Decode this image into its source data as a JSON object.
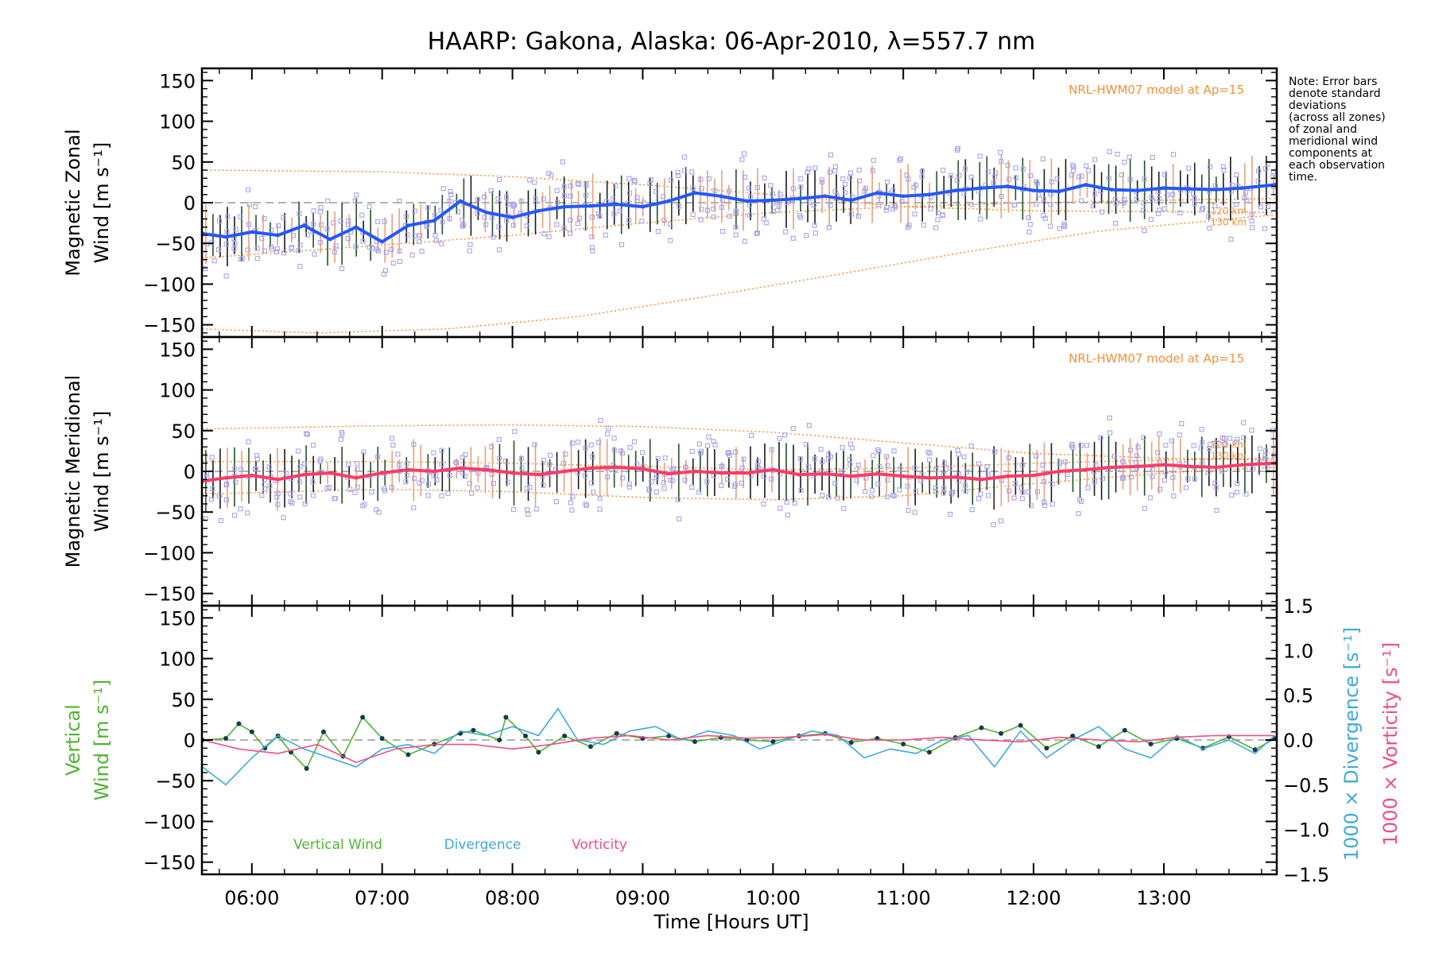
{
  "chart_data": {
    "type": "line",
    "title": "HAARP: Gakona,  Alaska: 06-Apr-2010, λ=557.7 nm",
    "xlabel": "Time [Hours UT]",
    "x_ticks": [
      "06:00",
      "07:00",
      "08:00",
      "09:00",
      "10:00",
      "11:00",
      "12:00",
      "13:00"
    ],
    "xlim": [
      "05:37",
      "13:52"
    ],
    "note": [
      "Note: Error bars",
      "denote standard",
      "deviations",
      "(across all zones)",
      "of zonal and",
      "meridional wind",
      "components at",
      "each observation",
      "time."
    ],
    "panels": [
      {
        "id": "zonal",
        "ylabel_lines": [
          "Magnetic Zonal",
          "Wind [m s⁻¹]"
        ],
        "ylim": [
          -165,
          165
        ],
        "y_ticks": [
          "150",
          "100",
          "50",
          "0",
          "−50",
          "−100",
          "−150"
        ],
        "model_label": "NRL-HWM07 model at Ap=15",
        "model_curve_labels": [
          "120 km",
          "130 km"
        ],
        "series": [
          {
            "name": "Magnetic Zonal Wind",
            "color": "#2458ff",
            "x_hours": [
              5.62,
              5.8,
              6.0,
              6.2,
              6.4,
              6.6,
              6.8,
              7.0,
              7.2,
              7.4,
              7.6,
              7.8,
              8.0,
              8.2,
              8.4,
              8.6,
              8.8,
              9.0,
              9.2,
              9.4,
              9.6,
              9.8,
              10.0,
              10.2,
              10.4,
              10.6,
              10.8,
              11.0,
              11.2,
              11.4,
              11.6,
              11.8,
              12.0,
              12.2,
              12.4,
              12.6,
              12.8,
              13.0,
              13.2,
              13.4,
              13.6,
              13.85
            ],
            "values": [
              -38,
              -42,
              -36,
              -40,
              -28,
              -45,
              -30,
              -48,
              -28,
              -22,
              2,
              -12,
              -18,
              -10,
              -5,
              -4,
              -2,
              -5,
              2,
              12,
              8,
              2,
              3,
              5,
              8,
              3,
              12,
              8,
              10,
              15,
              18,
              20,
              15,
              14,
              22,
              16,
              15,
              18,
              17,
              16,
              18,
              22
            ]
          }
        ],
        "model_curves": [
          {
            "altitude": "120 km",
            "x_hours": [
              5.62,
              7.0,
              8.0,
              9.0,
              10.0,
              11.0,
              12.0,
              13.0,
              13.85
            ],
            "values": [
              -68,
              -52,
              -40,
              -25,
              -12,
              -5,
              0,
              3,
              5
            ]
          },
          {
            "altitude": "130 km",
            "x_hours": [
              5.62,
              7.0,
              8.0,
              9.0,
              10.0,
              11.0,
              12.0,
              13.0,
              13.85
            ],
            "values": [
              40,
              38,
              32,
              22,
              10,
              -5,
              -10,
              -11,
              -12
            ]
          },
          {
            "altitude": "lower",
            "x_hours": [
              5.62,
              6.5,
              7.5,
              8.5,
              9.5,
              10.5,
              11.5,
              12.5,
              13.85
            ],
            "values": [
              -155,
              -160,
              -155,
              -140,
              -115,
              -88,
              -60,
              -35,
              -15
            ]
          }
        ]
      },
      {
        "id": "meridional",
        "ylabel_lines": [
          "Magnetic Meridional",
          "Wind [m s⁻¹]"
        ],
        "ylim": [
          -165,
          165
        ],
        "y_ticks": [
          "150",
          "100",
          "50",
          "0",
          "−50",
          "−100",
          "−150"
        ],
        "model_label": "NRL-HWM07 model at Ap=15",
        "model_curve_labels": [
          "120 km",
          "130 km"
        ],
        "series": [
          {
            "name": "Magnetic Meridional Wind",
            "color": "#ff3b68",
            "x_hours": [
              5.62,
              5.8,
              6.0,
              6.2,
              6.4,
              6.6,
              6.8,
              7.0,
              7.2,
              7.4,
              7.6,
              7.8,
              8.0,
              8.2,
              8.4,
              8.6,
              8.8,
              9.0,
              9.2,
              9.4,
              9.6,
              9.8,
              10.0,
              10.2,
              10.4,
              10.6,
              10.8,
              11.0,
              11.2,
              11.4,
              11.6,
              11.8,
              12.0,
              12.2,
              12.4,
              12.6,
              12.8,
              13.0,
              13.2,
              13.4,
              13.6,
              13.85
            ],
            "values": [
              -12,
              -8,
              -5,
              -10,
              -4,
              -2,
              -8,
              -2,
              2,
              0,
              4,
              2,
              -2,
              -4,
              0,
              4,
              5,
              3,
              -3,
              0,
              -2,
              -2,
              2,
              -4,
              -3,
              -6,
              -3,
              -6,
              -8,
              -7,
              -10,
              -6,
              -5,
              0,
              2,
              5,
              6,
              8,
              6,
              5,
              8,
              10
            ]
          }
        ],
        "model_curves": [
          {
            "altitude": "upper",
            "x_hours": [
              5.62,
              7.0,
              8.0,
              9.0,
              10.0,
              11.0,
              12.0,
              13.0,
              13.85
            ],
            "values": [
              52,
              56,
              57,
              55,
              48,
              35,
              22,
              16,
              14
            ]
          },
          {
            "altitude": "120 km",
            "x_hours": [
              5.62,
              7.0,
              8.0,
              9.0,
              10.0,
              11.0,
              12.0,
              13.0,
              13.85
            ],
            "values": [
              12,
              12,
              10,
              6,
              2,
              4,
              10,
              14,
              16
            ]
          },
          {
            "altitude": "130 km",
            "x_hours": [
              5.62,
              7.0,
              8.0,
              9.0,
              10.0,
              11.0,
              12.0,
              13.0,
              13.85
            ],
            "values": [
              -28,
              -22,
              -25,
              -32,
              -35,
              -30,
              -15,
              -2,
              5
            ]
          }
        ]
      },
      {
        "id": "vertical",
        "ylabel_lines": [
          "Vertical",
          "Wind [m s⁻¹]"
        ],
        "ylim": [
          -165,
          165
        ],
        "y_ticks": [
          "150",
          "100",
          "50",
          "0",
          "−50",
          "−100",
          "−150"
        ],
        "right_axis": {
          "label_divergence": "1000 × Divergence [s⁻¹]",
          "label_vorticity": "1000 × Vorticity [s⁻¹]",
          "ylim": [
            -1.5,
            1.5
          ],
          "y_ticks": [
            "1.5",
            "1.0",
            "0.5",
            "0.0",
            "−0.5",
            "−1.0",
            "−1.5"
          ]
        },
        "legend": [
          "Vertical Wind",
          "Divergence",
          "Vorticity"
        ],
        "series": [
          {
            "name": "Vertical Wind",
            "color": "#4fb431",
            "axis": "left",
            "x_hours": [
              5.62,
              5.8,
              5.9,
              6.0,
              6.1,
              6.2,
              6.3,
              6.42,
              6.55,
              6.7,
              6.85,
              7.0,
              7.2,
              7.4,
              7.6,
              7.7,
              7.9,
              7.95,
              8.1,
              8.2,
              8.4,
              8.6,
              8.8,
              9.0,
              9.2,
              9.4,
              9.6,
              9.8,
              10.0,
              10.2,
              10.4,
              10.6,
              10.8,
              11.0,
              11.2,
              11.4,
              11.6,
              11.75,
              11.9,
              12.1,
              12.3,
              12.5,
              12.7,
              12.9,
              13.1,
              13.3,
              13.5,
              13.7,
              13.85
            ],
            "values": [
              0,
              2,
              20,
              10,
              -10,
              5,
              -15,
              -35,
              10,
              -20,
              28,
              2,
              -18,
              -5,
              8,
              12,
              0,
              28,
              5,
              -15,
              5,
              -8,
              8,
              2,
              5,
              -2,
              3,
              0,
              -2,
              5,
              8,
              -3,
              2,
              -5,
              -15,
              3,
              15,
              8,
              18,
              -10,
              5,
              -8,
              12,
              -5,
              2,
              -10,
              4,
              -12,
              2
            ]
          },
          {
            "name": "Divergence",
            "color": "#3fa9dc",
            "axis": "right",
            "x_hours": [
              5.62,
              5.8,
              6.0,
              6.2,
              6.4,
              6.6,
              6.8,
              7.0,
              7.2,
              7.4,
              7.6,
              7.8,
              8.0,
              8.2,
              8.35,
              8.5,
              8.7,
              8.9,
              9.1,
              9.3,
              9.5,
              9.7,
              9.9,
              10.1,
              10.3,
              10.5,
              10.7,
              10.9,
              11.1,
              11.3,
              11.5,
              11.7,
              11.9,
              12.1,
              12.3,
              12.5,
              12.7,
              12.9,
              13.1,
              13.3,
              13.5,
              13.7,
              13.85
            ],
            "values": [
              -0.3,
              -0.5,
              -0.2,
              0.05,
              -0.1,
              -0.2,
              -0.3,
              -0.1,
              -0.05,
              -0.15,
              0.1,
              0.05,
              0.15,
              0.05,
              0.35,
              0.0,
              -0.05,
              0.1,
              0.15,
              0.0,
              0.1,
              0.05,
              -0.1,
              0.0,
              0.1,
              0.05,
              -0.2,
              -0.1,
              -0.15,
              0.0,
              0.05,
              -0.3,
              0.1,
              -0.2,
              0.0,
              0.15,
              -0.1,
              -0.2,
              0.05,
              -0.1,
              0.0,
              -0.15,
              0.05
            ]
          },
          {
            "name": "Vorticity",
            "color": "#ee4f86",
            "axis": "right",
            "x_hours": [
              5.62,
              5.9,
              6.2,
              6.5,
              6.8,
              7.1,
              7.4,
              7.7,
              8.0,
              8.3,
              8.6,
              8.9,
              9.2,
              9.5,
              9.8,
              10.1,
              10.4,
              10.7,
              11.0,
              11.3,
              11.6,
              11.9,
              12.2,
              12.5,
              12.8,
              13.1,
              13.4,
              13.7,
              13.85
            ],
            "values": [
              0.0,
              -0.1,
              -0.15,
              -0.05,
              -0.25,
              -0.1,
              -0.05,
              -0.05,
              -0.1,
              -0.05,
              0.02,
              0.05,
              0.0,
              0.05,
              0.02,
              0.03,
              0.06,
              0.0,
              0.0,
              0.03,
              0.0,
              -0.02,
              0.03,
              0.0,
              -0.02,
              0.03,
              0.05,
              0.05,
              0.05
            ]
          }
        ]
      }
    ]
  }
}
